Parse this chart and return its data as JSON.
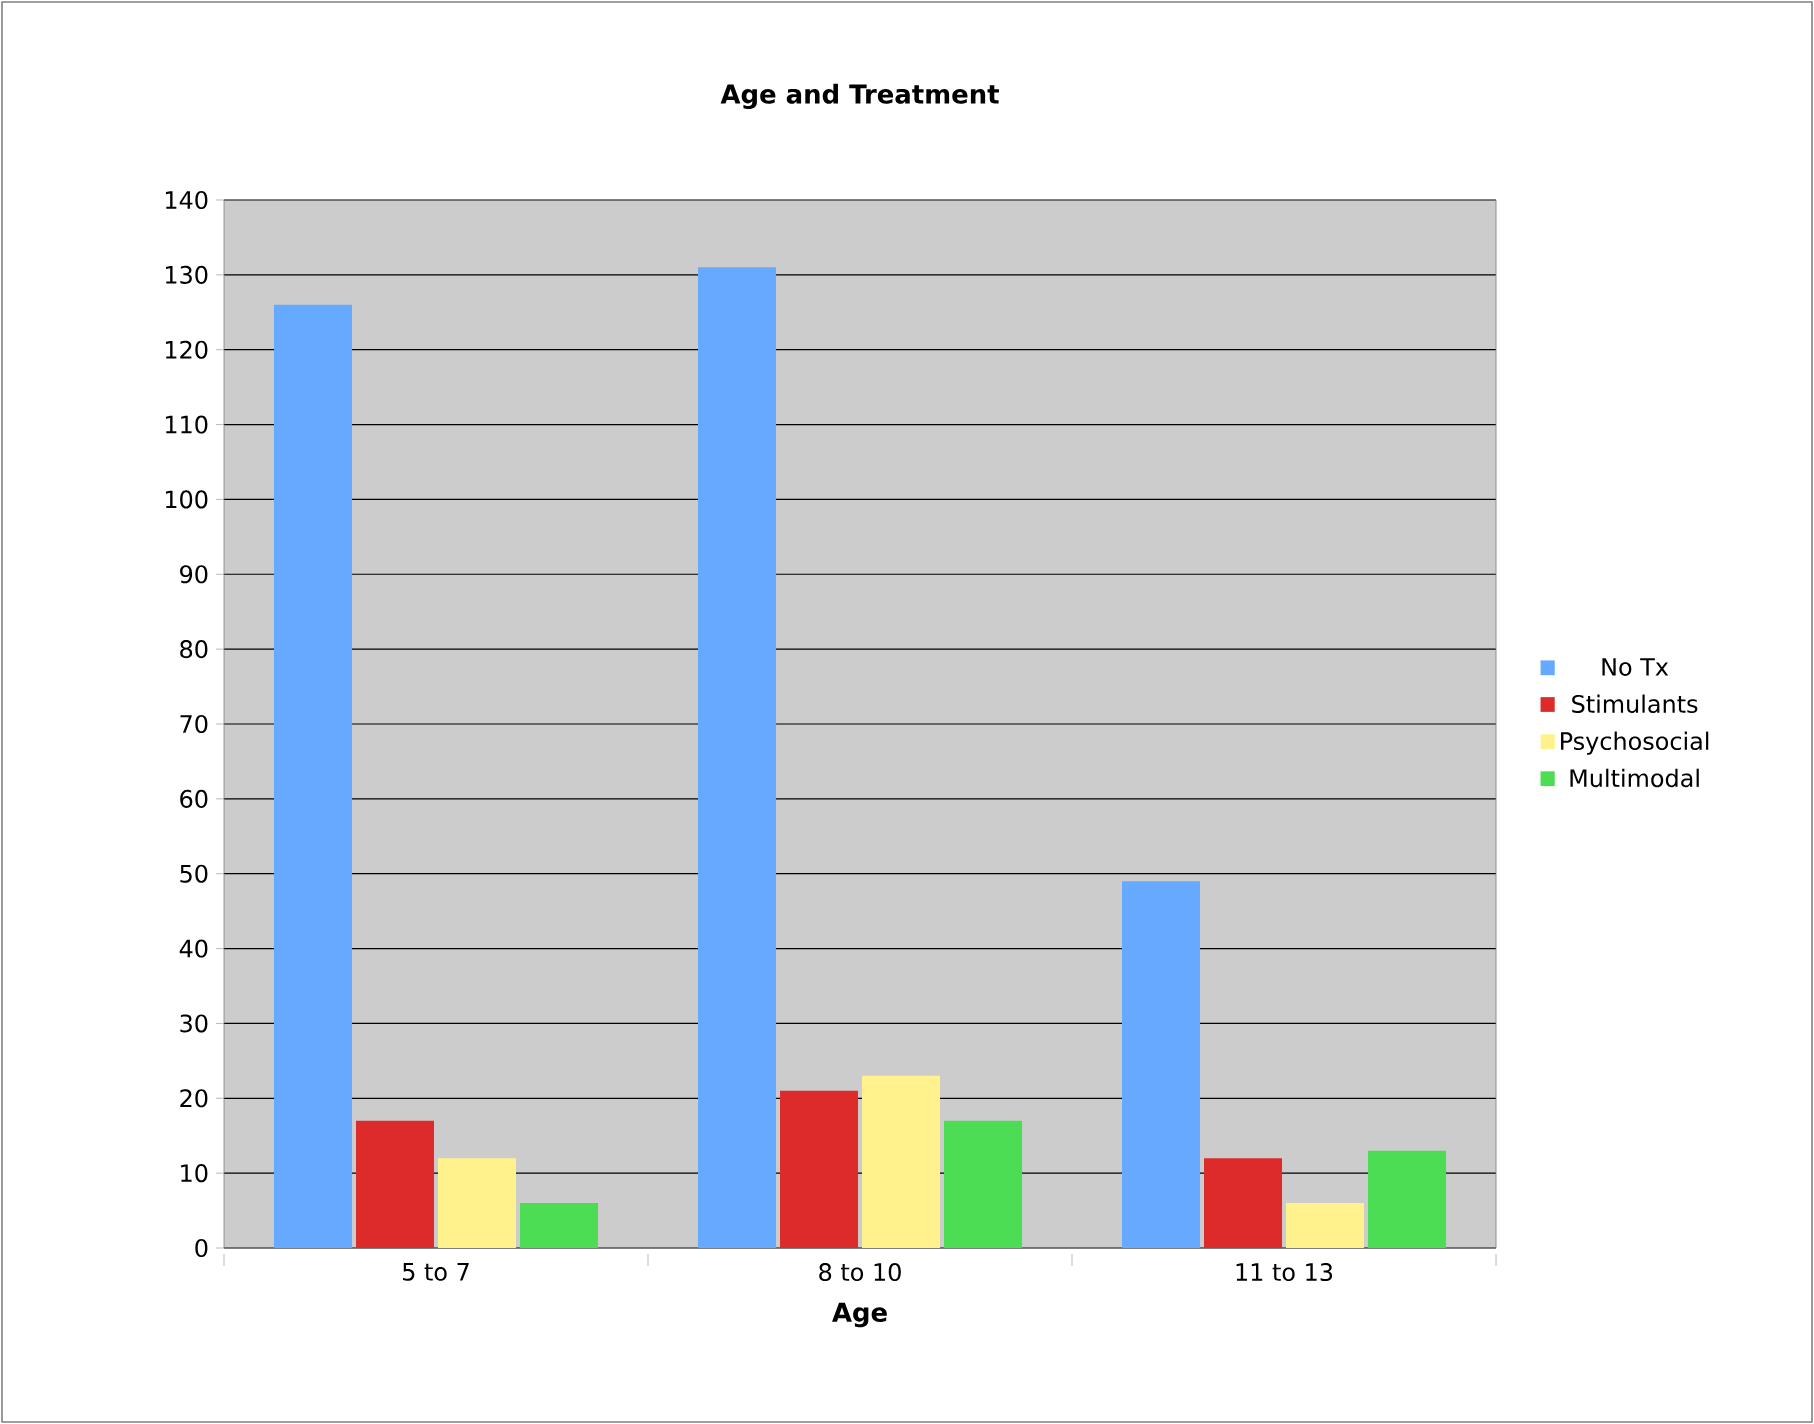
{
  "chart_data": {
    "type": "bar",
    "title": "Age and Treatment",
    "xlabel": "Age",
    "categories": [
      "5 to 7",
      "8 to 10",
      "11 to 13"
    ],
    "series": [
      {
        "name": "No Tx",
        "color": "#66aaff",
        "values": [
          126,
          131,
          49
        ]
      },
      {
        "name": "Stimulants",
        "color": "#dd2b2b",
        "values": [
          17,
          21,
          12
        ]
      },
      {
        "name": "Psychosocial",
        "color": "#fff28c",
        "values": [
          12,
          23,
          6
        ]
      },
      {
        "name": "Multimodal",
        "color": "#4ddd55",
        "values": [
          6,
          17,
          13
        ]
      }
    ],
    "ylim": [
      0,
      140
    ],
    "yticks": [
      0,
      10,
      20,
      30,
      40,
      50,
      60,
      70,
      80,
      90,
      100,
      110,
      120,
      130,
      140
    ],
    "grid": "y",
    "legend": "right"
  }
}
